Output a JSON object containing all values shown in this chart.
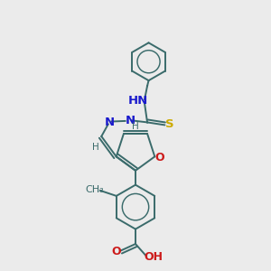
{
  "background_color": "#ebebeb",
  "bond_color": "#3a6b6b",
  "nitrogen_color": "#1a1acc",
  "oxygen_color": "#cc1a1a",
  "sulfur_color": "#ccaa00",
  "line_width": 1.4,
  "font_size": 8.5,
  "fig_w": 3.0,
  "fig_h": 3.0,
  "dpi": 100,
  "xlim": [
    0,
    1
  ],
  "ylim": [
    0,
    1
  ]
}
